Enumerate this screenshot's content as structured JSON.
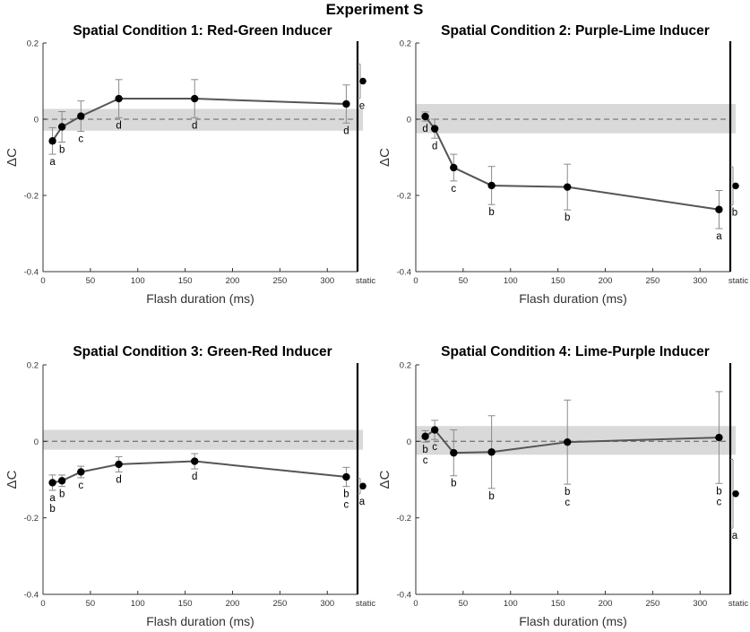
{
  "figure_title": "Experiment S",
  "colors": {
    "band": "#d9d9d9",
    "line": "#555555",
    "marker": "#000000",
    "errorbar": "#8a8a8a"
  },
  "chart_data": [
    {
      "type": "line",
      "title": "Spatial Condition 1: Red-Green Inducer",
      "xlabel": "Flash duration (ms)",
      "ylabel": "ΔC",
      "ylim": [
        -0.4,
        0.2
      ],
      "xlim": [
        0,
        330
      ],
      "xticks": [
        "0",
        "50",
        "100",
        "150",
        "200",
        "250",
        "300"
      ],
      "yticks": [
        "0.2",
        "0",
        "-0.2",
        "-0.4"
      ],
      "static_label": "static",
      "reference_line": 0,
      "band": [
        -0.03,
        0.027
      ],
      "points": [
        {
          "x": 10,
          "y": -0.057,
          "err": 0.035,
          "label": "a"
        },
        {
          "x": 20,
          "y": -0.02,
          "err": 0.04,
          "label": "b"
        },
        {
          "x": 40,
          "y": 0.008,
          "err": 0.04,
          "label": "c"
        },
        {
          "x": 80,
          "y": 0.054,
          "err": 0.05,
          "label": "d"
        },
        {
          "x": 160,
          "y": 0.054,
          "err": 0.05,
          "label": "d"
        },
        {
          "x": 320,
          "y": 0.04,
          "err": 0.05,
          "label": "d"
        }
      ],
      "static_point": {
        "y": 0.1,
        "err": 0.045,
        "label": "e"
      }
    },
    {
      "type": "line",
      "title": "Spatial Condition 2: Purple-Lime Inducer",
      "xlabel": "Flash duration (ms)",
      "ylabel": "ΔC",
      "ylim": [
        -0.4,
        0.2
      ],
      "xlim": [
        0,
        330
      ],
      "xticks": [
        "0",
        "50",
        "100",
        "150",
        "200",
        "250",
        "300"
      ],
      "yticks": [
        "0.2",
        "0",
        "-0.2",
        "-0.4"
      ],
      "static_label": "static",
      "reference_line": 0,
      "band": [
        -0.037,
        0.04
      ],
      "points": [
        {
          "x": 10,
          "y": 0.007,
          "err": 0.012,
          "label": "d"
        },
        {
          "x": 20,
          "y": -0.025,
          "err": 0.025,
          "label": "d"
        },
        {
          "x": 40,
          "y": -0.127,
          "err": 0.035,
          "label": "c"
        },
        {
          "x": 80,
          "y": -0.174,
          "err": 0.05,
          "label": "b"
        },
        {
          "x": 160,
          "y": -0.178,
          "err": 0.06,
          "label": "b"
        },
        {
          "x": 320,
          "y": -0.237,
          "err": 0.05,
          "label": "a"
        }
      ],
      "static_point": {
        "y": -0.175,
        "err": 0.05,
        "label": "b"
      }
    },
    {
      "type": "line",
      "title": "Spatial Condition 3: Green-Red Inducer",
      "xlabel": "Flash duration (ms)",
      "ylabel": "ΔC",
      "ylim": [
        -0.4,
        0.2
      ],
      "xlim": [
        0,
        330
      ],
      "xticks": [
        "0",
        "50",
        "100",
        "150",
        "200",
        "250",
        "300"
      ],
      "yticks": [
        "0.2",
        "0",
        "-0.2",
        "-0.4"
      ],
      "static_label": "static",
      "reference_line": 0,
      "band": [
        -0.022,
        0.03
      ],
      "points": [
        {
          "x": 10,
          "y": -0.108,
          "err": 0.02,
          "label": "a\nb"
        },
        {
          "x": 20,
          "y": -0.103,
          "err": 0.015,
          "label": "b"
        },
        {
          "x": 40,
          "y": -0.08,
          "err": 0.015,
          "label": "c"
        },
        {
          "x": 80,
          "y": -0.06,
          "err": 0.02,
          "label": "d"
        },
        {
          "x": 160,
          "y": -0.052,
          "err": 0.02,
          "label": "d"
        },
        {
          "x": 320,
          "y": -0.093,
          "err": 0.025,
          "label": "b\nc"
        }
      ],
      "static_point": {
        "y": -0.117,
        "err": 0.02,
        "label": "a"
      }
    },
    {
      "type": "line",
      "title": "Spatial Condition 4: Lime-Purple Inducer",
      "xlabel": "Flash duration (ms)",
      "ylabel": "ΔC",
      "ylim": [
        -0.4,
        0.2
      ],
      "xlim": [
        0,
        330
      ],
      "xticks": [
        "0",
        "50",
        "100",
        "150",
        "200",
        "250",
        "300"
      ],
      "yticks": [
        "0.2",
        "0",
        "-0.2",
        "-0.4"
      ],
      "static_label": "static",
      "reference_line": 0,
      "band": [
        -0.035,
        0.04
      ],
      "points": [
        {
          "x": 10,
          "y": 0.013,
          "err": 0.015,
          "label": "b\nc"
        },
        {
          "x": 20,
          "y": 0.03,
          "err": 0.025,
          "label": "c"
        },
        {
          "x": 40,
          "y": -0.03,
          "err": 0.06,
          "label": "b"
        },
        {
          "x": 80,
          "y": -0.028,
          "err": 0.095,
          "label": "b"
        },
        {
          "x": 160,
          "y": -0.002,
          "err": 0.11,
          "label": "b\nc"
        },
        {
          "x": 320,
          "y": 0.01,
          "err": 0.12,
          "label": "b\nc"
        }
      ],
      "static_point": {
        "y": -0.137,
        "err": 0.09,
        "label": "a"
      }
    }
  ]
}
